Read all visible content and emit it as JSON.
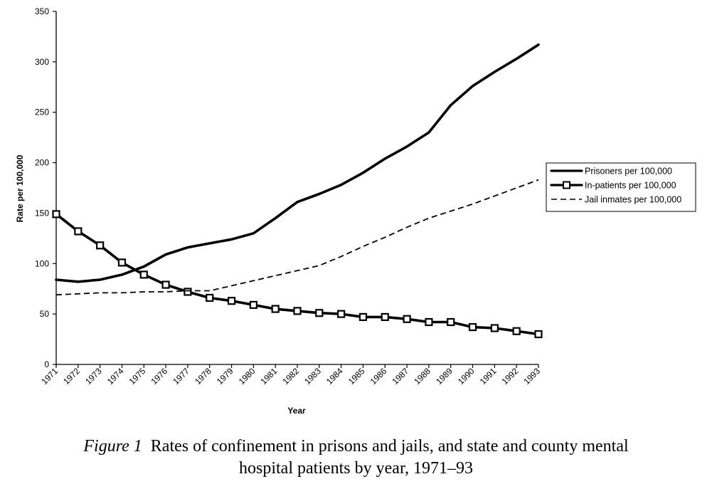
{
  "chart_data": {
    "type": "line",
    "title": "",
    "xlabel": "Year",
    "ylabel": "Rate per 100,000",
    "ylim": [
      0,
      350
    ],
    "yticks": [
      0,
      50,
      100,
      150,
      200,
      250,
      300,
      350
    ],
    "grid": false,
    "legend_position": "right",
    "categories": [
      "1971",
      "1972",
      "1973",
      "1974",
      "1975",
      "1976",
      "1977",
      "1978",
      "1979",
      "1980",
      "1981",
      "1982",
      "1983",
      "1984",
      "1985",
      "1986",
      "1987",
      "1988",
      "1989",
      "1990",
      "1991",
      "1992",
      "1993"
    ],
    "series": [
      {
        "name": "Prisoners per 100,000",
        "style": "solid-thick",
        "marker": "none",
        "values": [
          84,
          82,
          84,
          89,
          97,
          109,
          116,
          120,
          124,
          130,
          145,
          161,
          169,
          178,
          190,
          204,
          216,
          230,
          257,
          276,
          290,
          303,
          317
        ]
      },
      {
        "name": "In-patients per 100,000",
        "style": "solid-thick",
        "marker": "square",
        "values": [
          149,
          132,
          118,
          101,
          89,
          79,
          72,
          66,
          63,
          59,
          55,
          53,
          51,
          50,
          47,
          47,
          45,
          42,
          42,
          37,
          36,
          33,
          30
        ]
      },
      {
        "name": "Jail inmates per 100,000",
        "style": "dashed",
        "marker": "none",
        "values": [
          69,
          70,
          71,
          71,
          72,
          72,
          73,
          73,
          78,
          83,
          88,
          93,
          98,
          107,
          117,
          126,
          136,
          145,
          152,
          159,
          167,
          175,
          183
        ]
      }
    ],
    "colors": {
      "line": "#000000",
      "marker_fill": "#ffffff",
      "background": "#ffffff"
    }
  },
  "caption": {
    "label": "Figure 1",
    "text_line1": "Rates of confinement in prisons and jails, and state and county mental",
    "text_line2": "hospital patients by year, 1971–93"
  }
}
